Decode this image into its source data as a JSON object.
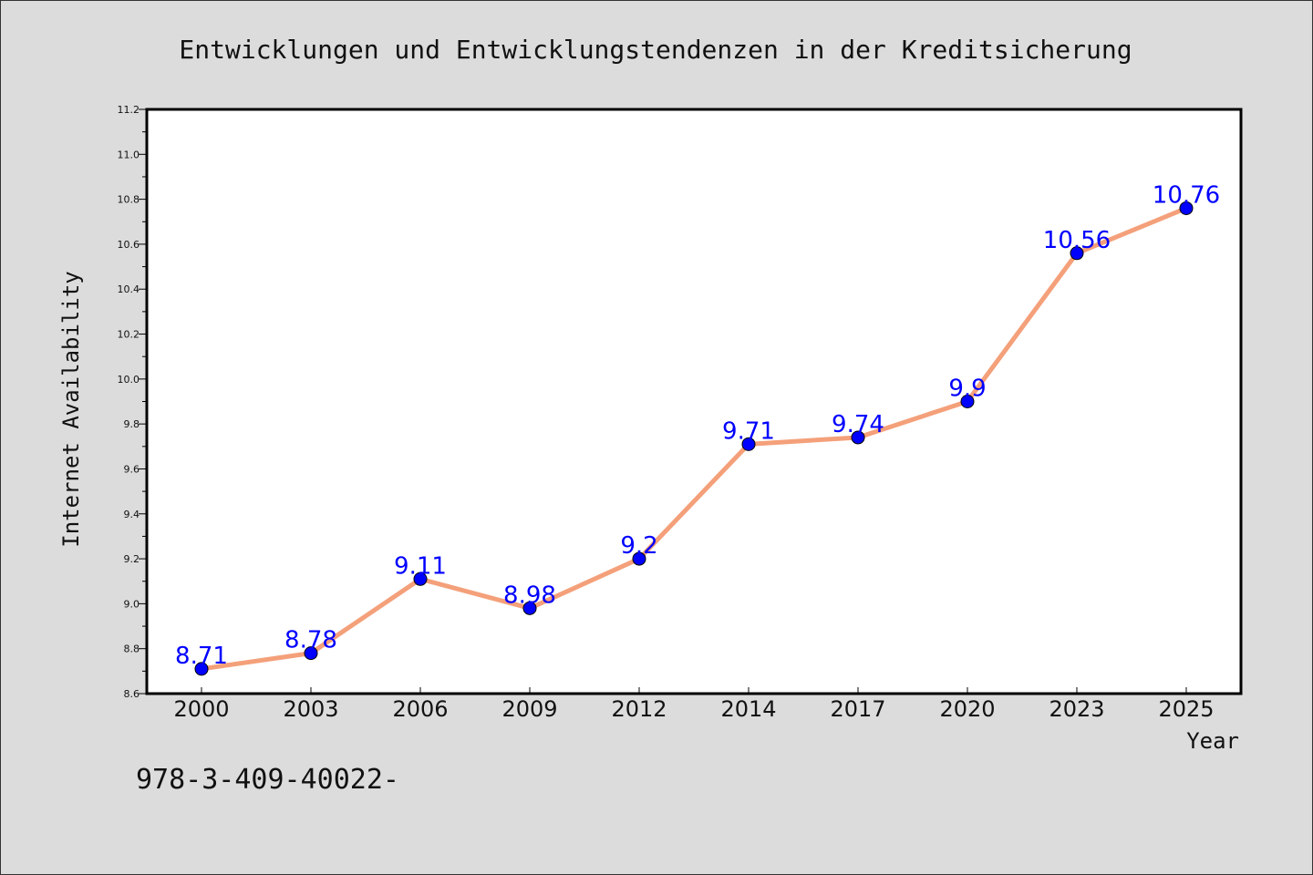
{
  "chart_data": {
    "type": "line",
    "title": "Entwicklungen und Entwicklungstendenzen in der Kreditsicherung",
    "xlabel": "Year",
    "ylabel": "Internet Availability",
    "categories": [
      "2000",
      "2003",
      "2006",
      "2009",
      "2012",
      "2014",
      "2017",
      "2020",
      "2023",
      "2025"
    ],
    "series": [
      {
        "values": [
          8.71,
          8.78,
          9.11,
          8.98,
          9.2,
          9.71,
          9.74,
          9.9,
          10.56,
          10.76
        ],
        "labels": [
          "8.71",
          "8.78",
          "9.11",
          "8.98",
          "9.2",
          "9.71",
          "9.74",
          "9.9",
          "10.56",
          "10.76"
        ],
        "line_color": "#f4a07a",
        "marker_color": "#0000ff"
      }
    ],
    "ylim": [
      8.6,
      11.2
    ],
    "yticks": [
      "8.6",
      "8.8",
      "9.0",
      "9.2",
      "9.4",
      "9.6",
      "9.8",
      "10.0",
      "10.2",
      "10.4",
      "10.6",
      "10.8",
      "11.0",
      "11.2"
    ],
    "grid": false,
    "legend": "none",
    "data_label_color": "#0000ff"
  },
  "footer_text": "978-3-409-40022-"
}
